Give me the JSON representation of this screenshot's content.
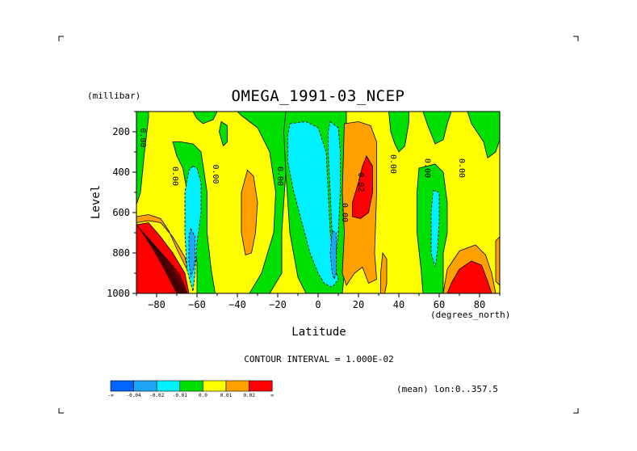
{
  "chart_data": {
    "type": "contour",
    "title": "OMEGA_1991-03_NCEP",
    "units_label": "(millibar)",
    "xlabel": "Latitude",
    "x_units": "(degrees_north)",
    "ylabel": "Level",
    "xlim": [
      -90,
      90
    ],
    "ylim": [
      1000,
      100
    ],
    "x_ticks": [
      -80,
      -60,
      -40,
      -20,
      0,
      20,
      40,
      60,
      80
    ],
    "x_tick_labels": [
      "−80",
      "−60",
      "−40",
      "−20",
      "0",
      "20",
      "40",
      "60",
      "80"
    ],
    "y_ticks": [
      200,
      400,
      600,
      800,
      1000
    ],
    "y_tick_labels": [
      "200",
      "400",
      "600",
      "800",
      "1000"
    ],
    "contour_interval_text": "CONTOUR INTERVAL = 1.000E-02",
    "mean_text": "(mean) lon:0..357.5",
    "contour_line_labels": [
      {
        "text": "0.00",
        "lat": -88,
        "level": 230
      },
      {
        "text": "0.00",
        "lat": -72,
        "level": 420
      },
      {
        "text": "0.00",
        "lat": -52,
        "level": 410
      },
      {
        "text": "0.00",
        "lat": -20,
        "level": 420
      },
      {
        "text": "0.00",
        "lat": 12,
        "level": 600
      },
      {
        "text": "0.02",
        "lat": 20,
        "level": 450
      },
      {
        "text": "0.00",
        "lat": 36,
        "level": 360
      },
      {
        "text": "0.00",
        "lat": 53,
        "level": 380
      },
      {
        "text": "0.00",
        "lat": 70,
        "level": 380
      }
    ],
    "regions": [
      {
        "cat": "r",
        "poly": [
          [
            -90,
            660
          ],
          [
            -84,
            650
          ],
          [
            -78,
            720
          ],
          [
            -72,
            800
          ],
          [
            -66,
            900
          ],
          [
            -64,
            1000
          ],
          [
            -90,
            1000
          ]
        ]
      },
      {
        "cat": "o",
        "poly": [
          [
            -90,
            620
          ],
          [
            -84,
            610
          ],
          [
            -78,
            630
          ],
          [
            -74,
            690
          ],
          [
            -70,
            780
          ],
          [
            -66,
            860
          ],
          [
            -64,
            900
          ],
          [
            -66,
            820
          ],
          [
            -72,
            720
          ],
          [
            -78,
            650
          ],
          [
            -84,
            640
          ],
          [
            -90,
            650
          ]
        ]
      },
      {
        "cat": "g",
        "poly": [
          [
            -90,
            100
          ],
          [
            -84,
            100
          ],
          [
            -84,
            130
          ],
          [
            -86,
            300
          ],
          [
            -88,
            500
          ],
          [
            -90,
            560
          ]
        ]
      },
      {
        "cat": "g",
        "poly": [
          [
            -72,
            250
          ],
          [
            -70,
            320
          ],
          [
            -67,
            380
          ],
          [
            -63,
            600
          ],
          [
            -60,
            850
          ],
          [
            -60,
            1000
          ],
          [
            -51,
            1000
          ],
          [
            -53,
            880
          ],
          [
            -55,
            700
          ],
          [
            -55,
            500
          ],
          [
            -58,
            300
          ],
          [
            -62,
            260
          ],
          [
            -68,
            250
          ]
        ]
      },
      {
        "cat": "g",
        "poly": [
          [
            -62,
            100
          ],
          [
            -50,
            100
          ],
          [
            -52,
            140
          ],
          [
            -57,
            160
          ],
          [
            -60,
            135
          ]
        ]
      },
      {
        "cat": "c",
        "poly": [
          [
            -62,
            370
          ],
          [
            -60,
            380
          ],
          [
            -58,
            450
          ],
          [
            -58,
            600
          ],
          [
            -60,
            750
          ],
          [
            -61,
            900
          ],
          [
            -62,
            990
          ],
          [
            -65,
            880
          ],
          [
            -66,
            700
          ],
          [
            -66,
            500
          ],
          [
            -64,
            390
          ]
        ]
      },
      {
        "cat": "b",
        "poly": [
          [
            -63,
            680
          ],
          [
            -61,
            720
          ],
          [
            -61,
            850
          ],
          [
            -63,
            920
          ],
          [
            -64,
            850
          ],
          [
            -64,
            720
          ]
        ]
      },
      {
        "cat": "g",
        "poly": [
          [
            -40,
            100
          ],
          [
            -14,
            100
          ],
          [
            -14,
            180
          ],
          [
            -16,
            400
          ],
          [
            -18,
            700
          ],
          [
            -18,
            900
          ],
          [
            -24,
            1000
          ],
          [
            -34,
            1000
          ],
          [
            -28,
            900
          ],
          [
            -22,
            700
          ],
          [
            -21,
            500
          ],
          [
            -24,
            300
          ],
          [
            -30,
            180
          ],
          [
            -34,
            150
          ],
          [
            -38,
            120
          ]
        ]
      },
      {
        "cat": "g",
        "poly": [
          [
            -48,
            150
          ],
          [
            -45,
            170
          ],
          [
            -45,
            250
          ],
          [
            -47,
            270
          ],
          [
            -49,
            200
          ]
        ]
      },
      {
        "cat": "o",
        "poly": [
          [
            -35,
            390
          ],
          [
            -32,
            420
          ],
          [
            -30,
            550
          ],
          [
            -31,
            700
          ],
          [
            -33,
            800
          ],
          [
            -36,
            810
          ],
          [
            -38,
            700
          ],
          [
            -38,
            500
          ]
        ]
      },
      {
        "cat": "g",
        "poly": [
          [
            -16,
            100
          ],
          [
            14,
            100
          ],
          [
            14,
            200
          ],
          [
            12,
            500
          ],
          [
            14,
            700
          ],
          [
            13,
            900
          ],
          [
            12,
            1000
          ],
          [
            -6,
            1000
          ],
          [
            -10,
            920
          ],
          [
            -14,
            700
          ],
          [
            -16,
            400
          ],
          [
            -17,
            200
          ]
        ]
      },
      {
        "cat": "c",
        "poly": [
          [
            -14,
            160
          ],
          [
            -6,
            150
          ],
          [
            0,
            180
          ],
          [
            4,
            300
          ],
          [
            5,
            500
          ],
          [
            6,
            700
          ],
          [
            8,
            860
          ],
          [
            10,
            930
          ],
          [
            7,
            970
          ],
          [
            3,
            950
          ],
          [
            0,
            900
          ],
          [
            -4,
            800
          ],
          [
            -8,
            650
          ],
          [
            -12,
            500
          ],
          [
            -15,
            350
          ],
          [
            -15,
            220
          ]
        ]
      },
      {
        "cat": "c",
        "poly": [
          [
            6,
            150
          ],
          [
            10,
            180
          ],
          [
            11,
            300
          ],
          [
            11,
            500
          ],
          [
            10,
            700
          ],
          [
            9,
            800
          ],
          [
            7,
            720
          ],
          [
            6,
            500
          ],
          [
            5,
            300
          ],
          [
            5,
            200
          ]
        ]
      },
      {
        "cat": "b",
        "poly": [
          [
            7,
            690
          ],
          [
            9,
            700
          ],
          [
            9,
            900
          ],
          [
            8,
            930
          ],
          [
            7,
            900
          ],
          [
            6,
            800
          ]
        ]
      },
      {
        "cat": "o",
        "poly": [
          [
            13,
            160
          ],
          [
            20,
            150
          ],
          [
            26,
            170
          ],
          [
            29,
            250
          ],
          [
            29,
            500
          ],
          [
            28,
            800
          ],
          [
            29,
            930
          ],
          [
            25,
            950
          ],
          [
            22,
            870
          ],
          [
            18,
            900
          ],
          [
            14,
            960
          ],
          [
            12,
            900
          ],
          [
            13,
            700
          ],
          [
            12,
            500
          ]
        ]
      },
      {
        "cat": "r",
        "poly": [
          [
            24,
            320
          ],
          [
            27,
            370
          ],
          [
            27,
            500
          ],
          [
            25,
            600
          ],
          [
            21,
            630
          ],
          [
            17,
            620
          ],
          [
            17,
            550
          ],
          [
            20,
            450
          ],
          [
            22,
            370
          ]
        ]
      },
      {
        "cat": "o",
        "poly": [
          [
            32,
            800
          ],
          [
            34,
            830
          ],
          [
            34,
            950
          ],
          [
            33,
            1000
          ],
          [
            31,
            1000
          ],
          [
            31,
            900
          ]
        ]
      },
      {
        "cat": "g",
        "poly": [
          [
            35,
            100
          ],
          [
            45,
            100
          ],
          [
            45,
            150
          ],
          [
            43,
            270
          ],
          [
            40,
            300
          ],
          [
            38,
            260
          ],
          [
            36,
            200
          ]
        ]
      },
      {
        "cat": "g",
        "poly": [
          [
            52,
            100
          ],
          [
            74,
            100
          ],
          [
            76,
            160
          ],
          [
            82,
            250
          ],
          [
            84,
            330
          ],
          [
            88,
            300
          ],
          [
            90,
            240
          ],
          [
            90,
            100
          ],
          [
            66,
            100
          ],
          [
            64,
            160
          ],
          [
            62,
            240
          ],
          [
            58,
            260
          ],
          [
            54,
            160
          ]
        ]
      },
      {
        "cat": "g",
        "poly": [
          [
            50,
            380
          ],
          [
            58,
            360
          ],
          [
            62,
            400
          ],
          [
            64,
            550
          ],
          [
            64,
            700
          ],
          [
            62,
            800
          ],
          [
            62,
            1000
          ],
          [
            52,
            1000
          ],
          [
            51,
            880
          ],
          [
            49,
            700
          ],
          [
            49,
            500
          ]
        ]
      },
      {
        "cat": "c",
        "poly": [
          [
            57,
            490
          ],
          [
            60,
            500
          ],
          [
            60,
            650
          ],
          [
            59,
            800
          ],
          [
            58,
            870
          ],
          [
            56,
            800
          ],
          [
            56,
            600
          ]
        ]
      },
      {
        "cat": "o",
        "poly": [
          [
            64,
            880
          ],
          [
            70,
            790
          ],
          [
            78,
            760
          ],
          [
            83,
            810
          ],
          [
            86,
            900
          ],
          [
            88,
            1000
          ],
          [
            62,
            1000
          ]
        ]
      },
      {
        "cat": "r",
        "poly": [
          [
            66,
            950
          ],
          [
            70,
            880
          ],
          [
            76,
            840
          ],
          [
            81,
            860
          ],
          [
            84,
            940
          ],
          [
            86,
            1000
          ],
          [
            64,
            1000
          ]
        ]
      },
      {
        "cat": "o",
        "poly": [
          [
            88,
            740
          ],
          [
            90,
            720
          ],
          [
            90,
            960
          ],
          [
            88,
            940
          ]
        ]
      }
    ]
  },
  "colorbar": {
    "colors": [
      "#0066ff",
      "#1ea6f5",
      "#00f0ff",
      "#00e000",
      "#ffff00",
      "#ffa000",
      "#ff0000"
    ],
    "labels": [
      "-∞",
      "-0.04",
      "-0.02",
      "-0.01",
      "0.0",
      "0.01",
      "0.02",
      "∞"
    ]
  },
  "fill_colors": {
    "background": "#ffff00",
    "g": "#00e000",
    "c": "#00f0ff",
    "b": "#1ea6f5",
    "o": "#ffa000",
    "r": "#ff0000"
  }
}
